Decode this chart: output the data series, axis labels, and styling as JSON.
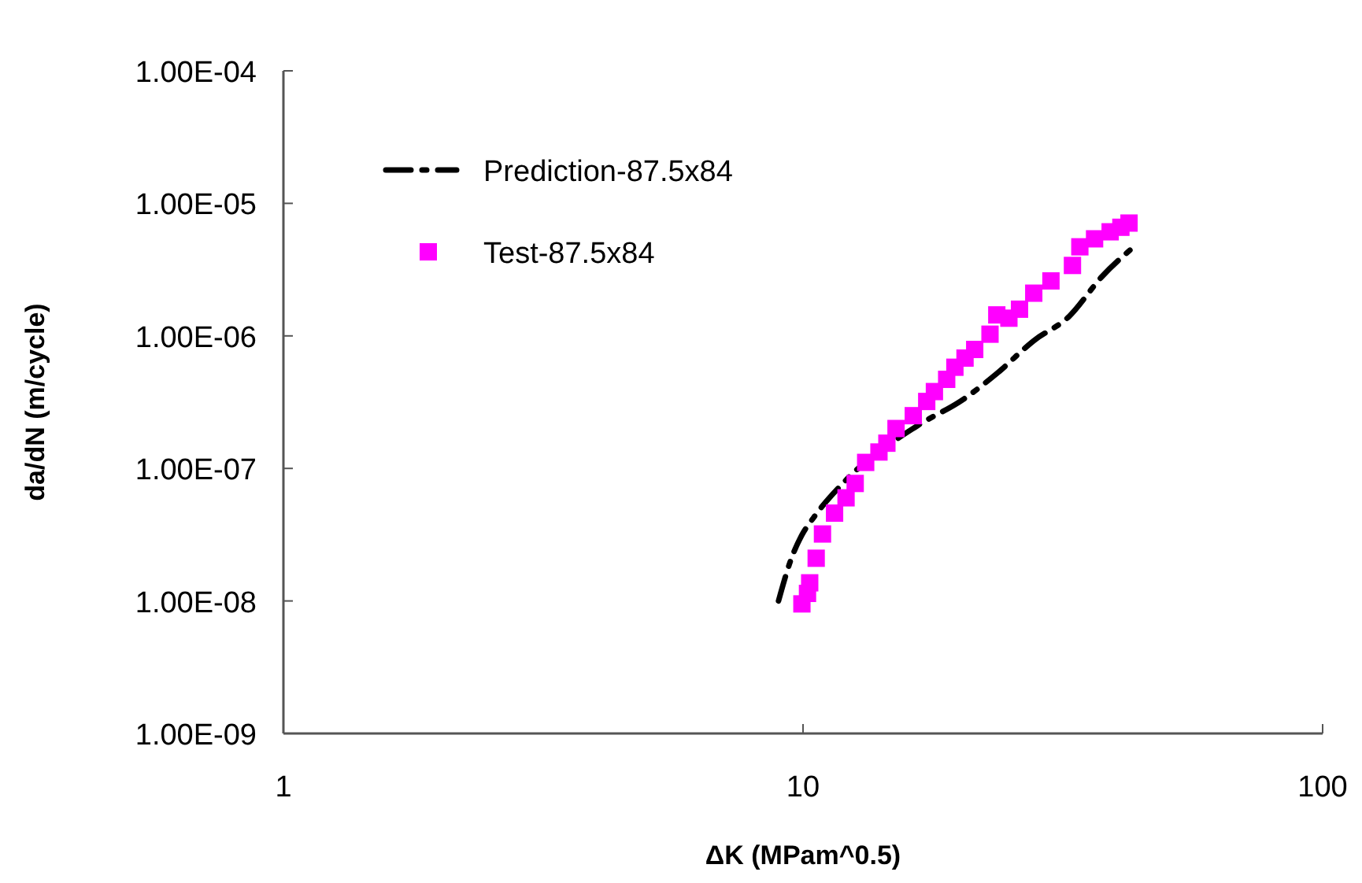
{
  "chart_data": {
    "type": "scatter",
    "xlabel": "ΔK (MPam^0.5)",
    "ylabel": "da/dN (m/cycle)",
    "log": "xy",
    "xlim": [
      1,
      100
    ],
    "ylim": [
      1e-09,
      0.0001
    ],
    "xticks": [
      1,
      10,
      100
    ],
    "yticks": [
      {
        "value": 1e-09,
        "label": "1.00E-09"
      },
      {
        "value": 1e-08,
        "label": "1.00E-08"
      },
      {
        "value": 1e-07,
        "label": "1.00E-07"
      },
      {
        "value": 1e-06,
        "label": "1.00E-06"
      },
      {
        "value": 1e-05,
        "label": "1.00E-05"
      },
      {
        "value": 0.0001,
        "label": "1.00E-04"
      }
    ],
    "grid": false,
    "legend": "top left",
    "series": [
      {
        "name": "Prediction-87.5x84",
        "type": "line",
        "color": "#000000",
        "line_style": "dashed",
        "marker": "none",
        "x": [
          8.97,
          9.5,
          9.93,
          10.5,
          12.0,
          16.6,
          20.3,
          23.6,
          27.8,
          32.5,
          37.6,
          43.3
        ],
        "values": [
          1e-08,
          2.1e-08,
          3.1e-08,
          4.3e-08,
          7.9e-08,
          2.1e-07,
          3.3e-07,
          5.2e-07,
          9.2e-07,
          1.4e-06,
          2.8e-06,
          4.7e-06
        ]
      },
      {
        "name": "Test-87.5x84",
        "color": "#ff00ff",
        "marker": "square",
        "x": [
          9.95,
          10.2,
          10.3,
          10.6,
          10.9,
          11.5,
          12.1,
          12.6,
          13.2,
          14.0,
          14.5,
          15.1,
          16.3,
          17.3,
          17.9,
          18.9,
          19.6,
          20.5,
          21.4,
          22.9,
          23.6,
          24.9,
          26.1,
          27.8,
          30.0,
          33.0,
          34.1,
          36.4,
          39.0,
          40.9,
          42.4
        ],
        "values": [
          9.5e-09,
          1.14e-08,
          1.37e-08,
          2.1e-08,
          3.2e-08,
          4.6e-08,
          6e-08,
          7.7e-08,
          1.11e-07,
          1.33e-07,
          1.55e-07,
          2e-07,
          2.5e-07,
          3.2e-07,
          3.8e-07,
          4.7e-07,
          5.8e-07,
          6.8e-07,
          7.9e-07,
          1.03e-06,
          1.44e-06,
          1.36e-06,
          1.59e-06,
          2.1e-06,
          2.6e-06,
          3.4e-06,
          4.7e-06,
          5.4e-06,
          6.1e-06,
          6.6e-06,
          7.1e-06
        ]
      }
    ]
  }
}
